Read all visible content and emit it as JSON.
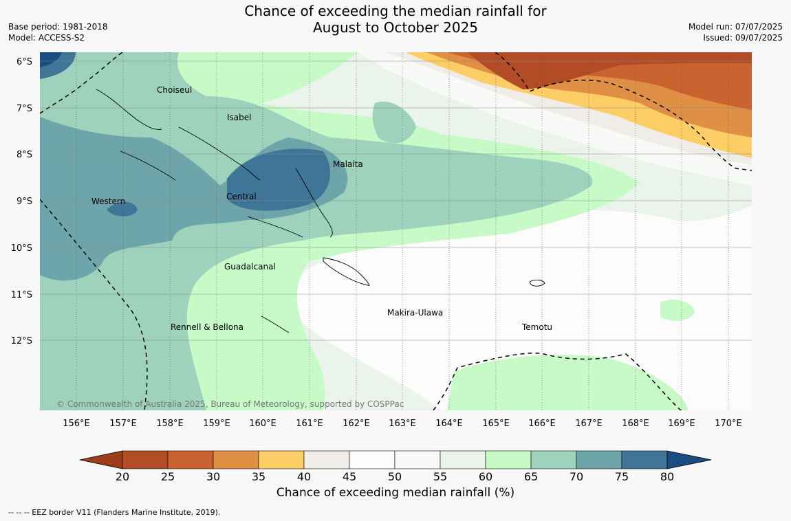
{
  "title_line1": "Chance of exceeding the median rainfall for",
  "title_line2": "August to October 2025",
  "meta_left": {
    "base_period": "Base period: 1981-2018",
    "model": "Model: ACCESS-S2"
  },
  "meta_right": {
    "model_run": "Model run: 07/07/2025",
    "issued": "Issued: 09/07/2025"
  },
  "copyright": "© Commonwealth of Australia 2025, Bureau of Meteorology, supported by COSPPac",
  "lat_labels": [
    "6°S",
    "7°S",
    "8°S",
    "9°S",
    "10°S",
    "11°S",
    "12°S"
  ],
  "lon_labels": [
    "156°E",
    "157°E",
    "158°E",
    "159°E",
    "160°E",
    "161°E",
    "162°E",
    "163°E",
    "164°E",
    "165°E",
    "166°E",
    "167°E",
    "168°E",
    "169°E",
    "170°E"
  ],
  "regions": [
    "Choiseul",
    "Isabel",
    "Malaita",
    "Western",
    "Central",
    "Guadalcanal",
    "Makira-Ulawa",
    "Rennell & Bellona",
    "Temotu"
  ],
  "colorbar": {
    "ticks": [
      "20",
      "25",
      "30",
      "35",
      "40",
      "45",
      "50",
      "55",
      "60",
      "65",
      "70",
      "75",
      "80"
    ],
    "colors": [
      "#9e3d1c",
      "#b24c26",
      "#cb6330",
      "#e09044",
      "#fdcd66",
      "#f0ede9",
      "#fbfcfb",
      "#f8faf8",
      "#eaf4ea",
      "#c8fac8",
      "#9ed2bc",
      "#6ea5aa",
      "#3f7698",
      "#1a4c82"
    ],
    "label": "Chance of exceeding median rainfall (%)"
  },
  "footer": "--  --  -- EEZ border V11 (Flanders Marine Institute, 2019)."
}
